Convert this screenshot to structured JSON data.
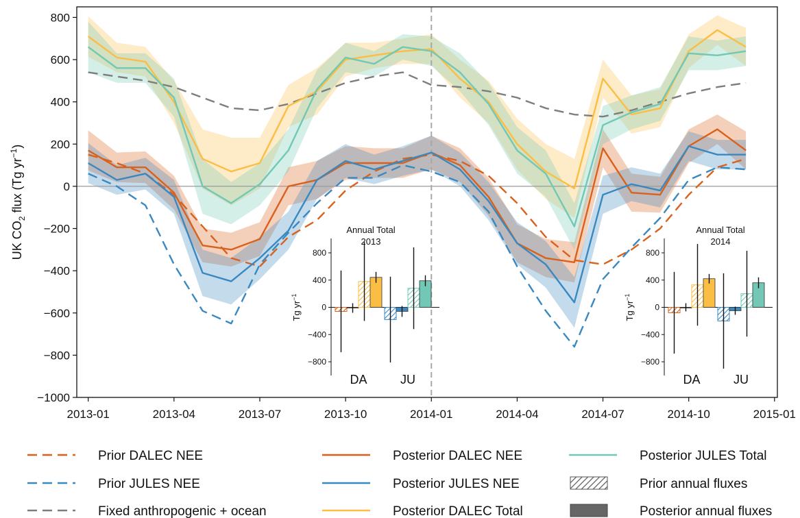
{
  "chart_data": {
    "type": "line",
    "ylabel_main": "UK CO",
    "ylabel_sub": "2",
    "ylabel_rest": " flux (Tg yr",
    "ylabel_sup": "−1",
    "ylabel_end": ")",
    "ylim": [
      -1000,
      850
    ],
    "yticks": [
      800,
      600,
      400,
      200,
      0,
      -200,
      -400,
      -600,
      -800,
      -1000
    ],
    "ytick_labels": [
      "800",
      "600",
      "400",
      "200",
      "0",
      "−200",
      "−400",
      "−600",
      "−800",
      "−1000"
    ],
    "xlim": [
      -0.4,
      24.1
    ],
    "xticks": [
      0,
      3,
      6,
      9,
      12,
      15,
      18,
      21,
      24
    ],
    "xtick_labels": [
      "2013-01",
      "2013-04",
      "2013-07",
      "2013-10",
      "2014-01",
      "2014-04",
      "2014-07",
      "2014-10",
      "2015-01"
    ],
    "x_months": [
      "2013-01",
      "2013-02",
      "2013-03",
      "2013-04",
      "2013-05",
      "2013-06",
      "2013-07",
      "2013-08",
      "2013-09",
      "2013-10",
      "2013-11",
      "2013-12",
      "2014-01",
      "2014-02",
      "2014-03",
      "2014-04",
      "2014-05",
      "2014-06",
      "2014-07",
      "2014-08",
      "2014-09",
      "2014-10",
      "2014-11",
      "2014-12"
    ],
    "series": [
      {
        "name": "Prior DALEC NEE",
        "color": "#d9611c",
        "style": "dashed",
        "values": [
          150,
          110,
          60,
          -40,
          -190,
          -340,
          -380,
          -240,
          -160,
          -20,
          70,
          130,
          150,
          120,
          50,
          -80,
          -240,
          -350,
          -370,
          -300,
          -200,
          -40,
          90,
          130
        ]
      },
      {
        "name": "Prior JULES NEE",
        "color": "#3a88c0",
        "style": "dashed",
        "values": [
          60,
          0,
          -90,
          -370,
          -590,
          -650,
          -370,
          -220,
          -80,
          40,
          40,
          100,
          70,
          20,
          -120,
          -380,
          -590,
          -760,
          -440,
          -290,
          -150,
          30,
          90,
          80
        ]
      },
      {
        "name": "Fixed anthropogenic + ocean",
        "color": "#7d7d7d",
        "style": "dashed",
        "values": [
          540,
          520,
          500,
          470,
          420,
          370,
          360,
          390,
          440,
          490,
          520,
          540,
          480,
          470,
          450,
          420,
          370,
          340,
          330,
          360,
          400,
          440,
          470,
          490
        ]
      },
      {
        "name": "Posterior DALEC NEE",
        "color": "#d9611c",
        "style": "solid",
        "values": [
          170,
          90,
          90,
          -30,
          -280,
          -300,
          -250,
          0,
          30,
          110,
          110,
          110,
          160,
          100,
          -50,
          -270,
          -340,
          -360,
          180,
          -30,
          -40,
          190,
          270,
          170
        ],
        "band": [
          95,
          70,
          75,
          80,
          80,
          80,
          80,
          90,
          90,
          80,
          70,
          70,
          80,
          80,
          90,
          90,
          90,
          95,
          90,
          90,
          85,
          80,
          70,
          90
        ]
      },
      {
        "name": "Posterior JULES NEE",
        "color": "#3a88c0",
        "style": "solid",
        "values": [
          110,
          30,
          60,
          -50,
          -410,
          -450,
          -340,
          -210,
          30,
          120,
          80,
          120,
          160,
          80,
          -70,
          -270,
          -370,
          -550,
          -40,
          10,
          -20,
          190,
          150,
          150
        ],
        "band": [
          95,
          70,
          75,
          80,
          110,
          110,
          100,
          90,
          90,
          80,
          70,
          70,
          80,
          80,
          90,
          100,
          110,
          120,
          90,
          80,
          80,
          70,
          70,
          70
        ]
      },
      {
        "name": "Posterior DALEC Total",
        "color": "#fbbe45",
        "style": "solid",
        "values": [
          710,
          610,
          590,
          400,
          130,
          70,
          110,
          380,
          450,
          600,
          620,
          640,
          650,
          510,
          400,
          200,
          70,
          -10,
          510,
          340,
          370,
          640,
          740,
          660
        ],
        "band": [
          95,
          70,
          70,
          100,
          140,
          160,
          120,
          100,
          110,
          80,
          60,
          60,
          70,
          90,
          100,
          120,
          130,
          140,
          90,
          90,
          90,
          80,
          70,
          90
        ]
      },
      {
        "name": "Posterior JULES Total",
        "color": "#72c8b4",
        "style": "solid",
        "values": [
          660,
          560,
          560,
          420,
          0,
          -80,
          10,
          170,
          460,
          610,
          580,
          660,
          640,
          540,
          390,
          170,
          60,
          -190,
          290,
          350,
          390,
          630,
          620,
          640
        ],
        "band": [
          120,
          70,
          70,
          90,
          130,
          100,
          100,
          100,
          90,
          70,
          60,
          60,
          70,
          90,
          100,
          110,
          110,
          110,
          90,
          80,
          80,
          80,
          70,
          70
        ]
      }
    ],
    "insets": [
      {
        "title_line1": "Annual Total",
        "title_line2": "2013",
        "ylabel": "Tg yr",
        "ylabel_sup": "−1",
        "yticks": [
          800,
          400,
          0,
          -400,
          -800
        ],
        "ytick_labels": [
          "800",
          "400",
          "0",
          "−400",
          "−800"
        ],
        "groups": [
          "DA",
          "JU"
        ],
        "bars": [
          {
            "group": "DA",
            "kind": "prior",
            "quantity": "NEE",
            "value": -60,
            "err": 600
          },
          {
            "group": "DA",
            "kind": "posterior",
            "quantity": "NEE",
            "value": -10,
            "err": 70
          },
          {
            "group": "DA",
            "kind": "prior",
            "quantity": "Total",
            "value": 380,
            "err": 580
          },
          {
            "group": "DA",
            "kind": "posterior",
            "quantity": "Total",
            "value": 440,
            "err": 80
          },
          {
            "group": "JU",
            "kind": "prior",
            "quantity": "NEE",
            "value": -180,
            "err": 630
          },
          {
            "group": "JU",
            "kind": "posterior",
            "quantity": "NEE",
            "value": -60,
            "err": 80
          },
          {
            "group": "JU",
            "kind": "prior",
            "quantity": "Total",
            "value": 280,
            "err": 600
          },
          {
            "group": "JU",
            "kind": "posterior",
            "quantity": "Total",
            "value": 390,
            "err": 80
          }
        ]
      },
      {
        "title_line1": "Annual Total",
        "title_line2": "2014",
        "ylabel": "Tg yr",
        "ylabel_sup": "−1",
        "yticks": [
          800,
          400,
          0,
          -400,
          -800
        ],
        "ytick_labels": [
          "800",
          "400",
          "0",
          "−400",
          "−800"
        ],
        "groups": [
          "DA",
          "JU"
        ],
        "bars": [
          {
            "group": "DA",
            "kind": "prior",
            "quantity": "NEE",
            "value": -80,
            "err": 600
          },
          {
            "group": "DA",
            "kind": "posterior",
            "quantity": "NEE",
            "value": 0,
            "err": 60
          },
          {
            "group": "DA",
            "kind": "prior",
            "quantity": "Total",
            "value": 330,
            "err": 600
          },
          {
            "group": "DA",
            "kind": "posterior",
            "quantity": "Total",
            "value": 420,
            "err": 70
          },
          {
            "group": "JU",
            "kind": "prior",
            "quantity": "NEE",
            "value": -200,
            "err": 700
          },
          {
            "group": "JU",
            "kind": "posterior",
            "quantity": "NEE",
            "value": -50,
            "err": 60
          },
          {
            "group": "JU",
            "kind": "prior",
            "quantity": "Total",
            "value": 200,
            "err": 630
          },
          {
            "group": "JU",
            "kind": "posterior",
            "quantity": "Total",
            "value": 360,
            "err": 80
          }
        ]
      }
    ],
    "bar_colors": {
      "DA_NEE": "#d9611c",
      "DA_Total": "#fbbe45",
      "JU_NEE": "#3a88c0",
      "JU_Total": "#72c8b4"
    },
    "legend": {
      "placement": "bottom",
      "entries": [
        {
          "label": "Prior DALEC NEE",
          "kind": "line",
          "color": "#d9611c",
          "style": "dashed"
        },
        {
          "label": "Posterior DALEC NEE",
          "kind": "line",
          "color": "#d9611c",
          "style": "solid"
        },
        {
          "label": "Posterior JULES Total",
          "kind": "line",
          "color": "#72c8b4",
          "style": "solid"
        },
        {
          "label": "Prior JULES NEE",
          "kind": "line",
          "color": "#3a88c0",
          "style": "dashed"
        },
        {
          "label": "Posterior JULES NEE",
          "kind": "line",
          "color": "#3a88c0",
          "style": "solid"
        },
        {
          "label": "Prior annual fluxes",
          "kind": "patch-hatched",
          "color": "#555555"
        },
        {
          "label": "Fixed anthropogenic + ocean",
          "kind": "line",
          "color": "#7d7d7d",
          "style": "dashed"
        },
        {
          "label": "Posterior DALEC Total",
          "kind": "line",
          "color": "#fbbe45",
          "style": "solid"
        },
        {
          "label": "Posterior annual fluxes",
          "kind": "patch-solid",
          "color": "#666666"
        }
      ]
    },
    "zero_line": true,
    "year_divider_at": "2014-01"
  }
}
